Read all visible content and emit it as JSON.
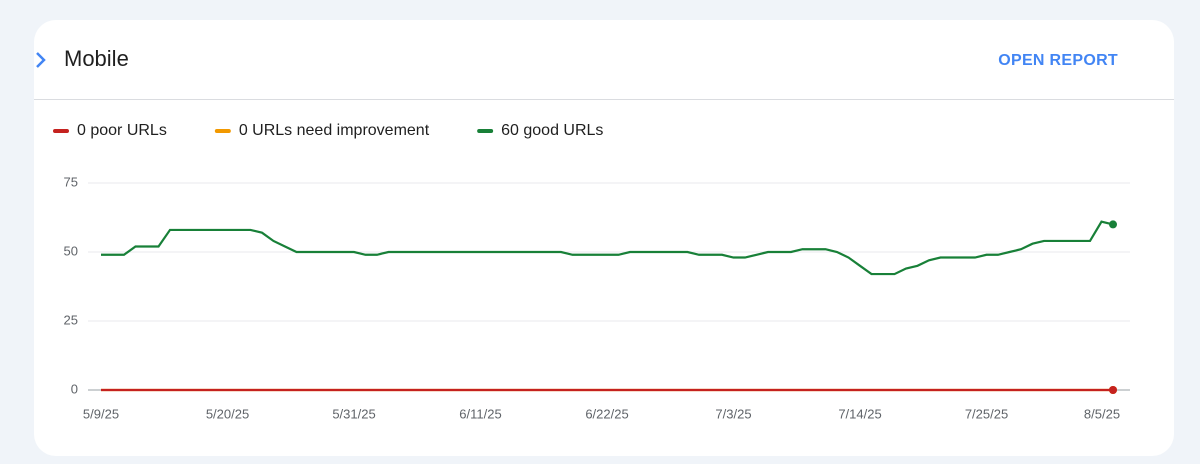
{
  "header": {
    "title": "Mobile",
    "action": "OPEN REPORT"
  },
  "chart_data": {
    "type": "line",
    "x": [
      "5/9/25",
      "5/10/25",
      "5/11/25",
      "5/12/25",
      "5/13/25",
      "5/14/25",
      "5/15/25",
      "5/16/25",
      "5/17/25",
      "5/18/25",
      "5/19/25",
      "5/20/25",
      "5/21/25",
      "5/22/25",
      "5/23/25",
      "5/24/25",
      "5/25/25",
      "5/26/25",
      "5/27/25",
      "5/28/25",
      "5/29/25",
      "5/30/25",
      "5/31/25",
      "6/1/25",
      "6/2/25",
      "6/3/25",
      "6/4/25",
      "6/5/25",
      "6/6/25",
      "6/7/25",
      "6/8/25",
      "6/9/25",
      "6/10/25",
      "6/11/25",
      "6/12/25",
      "6/13/25",
      "6/14/25",
      "6/15/25",
      "6/16/25",
      "6/17/25",
      "6/18/25",
      "6/19/25",
      "6/20/25",
      "6/21/25",
      "6/22/25",
      "6/23/25",
      "6/24/25",
      "6/25/25",
      "6/26/25",
      "6/27/25",
      "6/28/25",
      "6/29/25",
      "6/30/25",
      "7/1/25",
      "7/2/25",
      "7/3/25",
      "7/4/25",
      "7/5/25",
      "7/6/25",
      "7/7/25",
      "7/8/25",
      "7/9/25",
      "7/10/25",
      "7/11/25",
      "7/12/25",
      "7/13/25",
      "7/14/25",
      "7/15/25",
      "7/16/25",
      "7/17/25",
      "7/18/25",
      "7/19/25",
      "7/20/25",
      "7/21/25",
      "7/22/25",
      "7/23/25",
      "7/24/25",
      "7/25/25",
      "7/26/25",
      "7/27/25",
      "7/28/25",
      "7/29/25",
      "7/30/25",
      "7/31/25",
      "8/1/25",
      "8/2/25",
      "8/3/25",
      "8/4/25",
      "8/5/25"
    ],
    "xticks": [
      "5/9/25",
      "5/20/25",
      "5/31/25",
      "6/11/25",
      "6/22/25",
      "7/3/25",
      "7/14/25",
      "7/25/25",
      "8/5/25"
    ],
    "ylim": [
      0,
      75
    ],
    "yticks": [
      0,
      25,
      50,
      75
    ],
    "grid": true,
    "series": [
      {
        "name": "0 URLs need improvement",
        "color": "#f29900",
        "values": [
          0,
          0,
          0,
          0,
          0,
          0,
          0,
          0,
          0,
          0,
          0,
          0,
          0,
          0,
          0,
          0,
          0,
          0,
          0,
          0,
          0,
          0,
          0,
          0,
          0,
          0,
          0,
          0,
          0,
          0,
          0,
          0,
          0,
          0,
          0,
          0,
          0,
          0,
          0,
          0,
          0,
          0,
          0,
          0,
          0,
          0,
          0,
          0,
          0,
          0,
          0,
          0,
          0,
          0,
          0,
          0,
          0,
          0,
          0,
          0,
          0,
          0,
          0,
          0,
          0,
          0,
          0,
          0,
          0,
          0,
          0,
          0,
          0,
          0,
          0,
          0,
          0,
          0,
          0,
          0,
          0,
          0,
          0,
          0,
          0,
          0,
          0,
          0,
          0
        ]
      },
      {
        "name": "0 poor URLs",
        "color": "#c5221f",
        "values": [
          0,
          0,
          0,
          0,
          0,
          0,
          0,
          0,
          0,
          0,
          0,
          0,
          0,
          0,
          0,
          0,
          0,
          0,
          0,
          0,
          0,
          0,
          0,
          0,
          0,
          0,
          0,
          0,
          0,
          0,
          0,
          0,
          0,
          0,
          0,
          0,
          0,
          0,
          0,
          0,
          0,
          0,
          0,
          0,
          0,
          0,
          0,
          0,
          0,
          0,
          0,
          0,
          0,
          0,
          0,
          0,
          0,
          0,
          0,
          0,
          0,
          0,
          0,
          0,
          0,
          0,
          0,
          0,
          0,
          0,
          0,
          0,
          0,
          0,
          0,
          0,
          0,
          0,
          0,
          0,
          0,
          0,
          0,
          0,
          0,
          0,
          0,
          0,
          0
        ]
      },
      {
        "name": "60 good URLs",
        "color": "#188038",
        "values": [
          49,
          49,
          49,
          52,
          52,
          52,
          58,
          58,
          58,
          58,
          58,
          58,
          58,
          58,
          57,
          54,
          52,
          50,
          50,
          50,
          50,
          50,
          50,
          49,
          49,
          50,
          50,
          50,
          50,
          50,
          50,
          50,
          50,
          50,
          50,
          50,
          50,
          50,
          50,
          50,
          50,
          49,
          49,
          49,
          49,
          49,
          50,
          50,
          50,
          50,
          50,
          50,
          49,
          49,
          49,
          48,
          48,
          49,
          50,
          50,
          50,
          51,
          51,
          51,
          50,
          48,
          45,
          42,
          42,
          42,
          44,
          45,
          47,
          48,
          48,
          48,
          48,
          49,
          49,
          50,
          51,
          53,
          54,
          54,
          54,
          54,
          54,
          61,
          60
        ]
      }
    ],
    "legend_order": [
      1,
      0,
      2
    ]
  }
}
